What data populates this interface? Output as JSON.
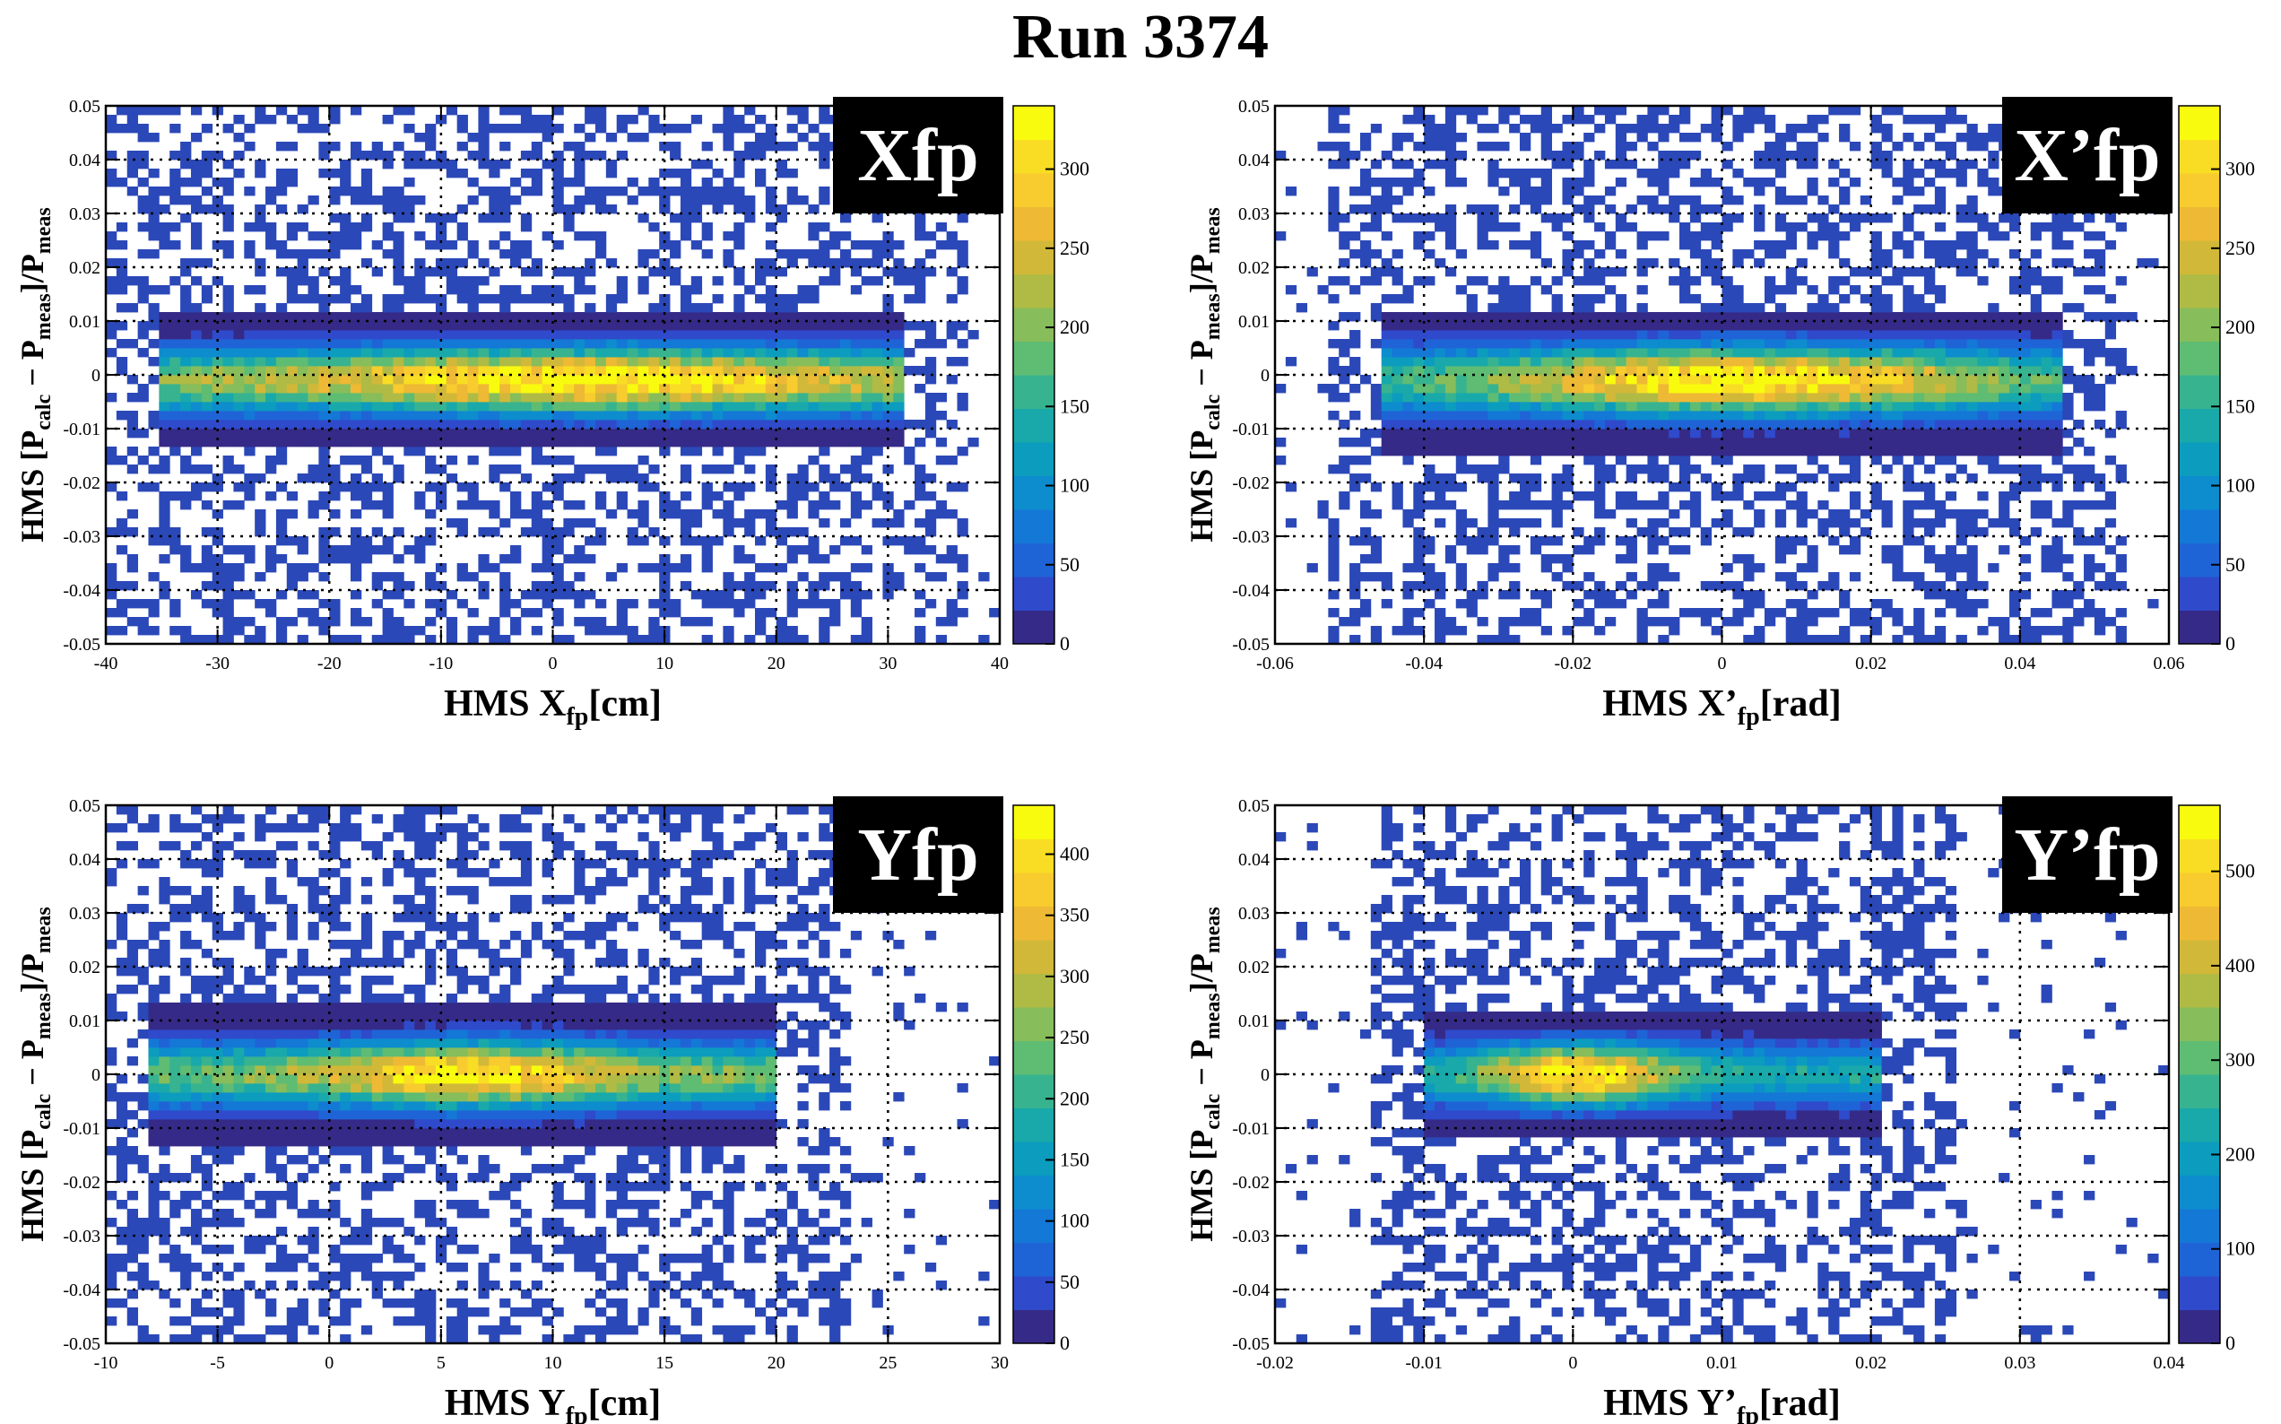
{
  "title": "Run 3374",
  "colormap": [
    "#352a87",
    "#2f4acb",
    "#1f64d6",
    "#1478d6",
    "#0d8cce",
    "#0c9cbe",
    "#19a9aa",
    "#38b38f",
    "#5ebc73",
    "#87bd5a",
    "#b0bb45",
    "#d2b838",
    "#eeb934",
    "#f8cb2e",
    "#f9dd24",
    "#f9fb0e"
  ],
  "scatter_color": "#2b48b8",
  "chart_data": [
    {
      "type": "heatmap",
      "panel_label": "Xfp",
      "xlabel": {
        "base": "HMS X",
        "sub": "fp",
        "unit": "[cm]"
      },
      "ylabel": {
        "p1": "HMS [P",
        "s1": "calc",
        "p2": " − P",
        "s2": "meas",
        "p3": "]/P",
        "s3": "meas"
      },
      "xlim": [
        -40,
        40
      ],
      "ylim": [
        -0.05,
        0.05
      ],
      "xticks": [
        "-40",
        "-30",
        "-20",
        "-10",
        "0",
        "10",
        "20",
        "30",
        "40"
      ],
      "yticks": [
        "-0.05",
        "-0.04",
        "-0.03",
        "-0.02",
        "-0.01",
        "0",
        "0.01",
        "0.02",
        "0.03",
        "0.04",
        "0.05"
      ],
      "zmax": 340,
      "zticks": [
        "0",
        "50",
        "100",
        "150",
        "200",
        "250",
        "300"
      ],
      "band": {
        "x_min": -35,
        "x_max": 31,
        "peak_x": 3,
        "peak_y": -0.001,
        "width_x": 25,
        "sigma_y": 0.004,
        "ridge_frac": 0.55
      }
    },
    {
      "type": "heatmap",
      "panel_label": "X’fp",
      "xlabel": {
        "base": "HMS X’",
        "sub": "fp",
        "unit": "[rad]"
      },
      "ylabel": {
        "p1": "HMS [P",
        "s1": "calc",
        "p2": " − P",
        "s2": "meas",
        "p3": "]/P",
        "s3": "meas"
      },
      "xlim": [
        -0.06,
        0.06
      ],
      "ylim": [
        -0.05,
        0.05
      ],
      "xticks": [
        "-0.06",
        "-0.04",
        "-0.02",
        "0",
        "0.02",
        "0.04",
        "0.06"
      ],
      "yticks": [
        "-0.05",
        "-0.04",
        "-0.03",
        "-0.02",
        "-0.01",
        "0",
        "0.01",
        "0.02",
        "0.03",
        "0.04",
        "0.05"
      ],
      "zmax": 340,
      "zticks": [
        "0",
        "50",
        "100",
        "150",
        "200",
        "250",
        "300"
      ],
      "band": {
        "x_min": -0.045,
        "x_max": 0.045,
        "peak_x": 0.003,
        "peak_y": -0.001,
        "width_x": 0.03,
        "sigma_y": 0.0042,
        "ridge_frac": 0.45
      }
    },
    {
      "type": "heatmap",
      "panel_label": "Yfp",
      "xlabel": {
        "base": "HMS Y",
        "sub": "fp",
        "unit": "[cm]"
      },
      "ylabel": {
        "p1": "HMS [P",
        "s1": "calc",
        "p2": " − P",
        "s2": "meas",
        "p3": "]/P",
        "s3": "meas"
      },
      "xlim": [
        -10,
        30
      ],
      "ylim": [
        -0.05,
        0.05
      ],
      "xticks": [
        "-10",
        "-5",
        "0",
        "5",
        "10",
        "15",
        "20",
        "25",
        "30"
      ],
      "yticks": [
        "-0.05",
        "-0.04",
        "-0.03",
        "-0.02",
        "-0.01",
        "0",
        "0.01",
        "0.02",
        "0.03",
        "0.04",
        "0.05"
      ],
      "zmax": 440,
      "zticks": [
        "0",
        "50",
        "100",
        "150",
        "200",
        "250",
        "300",
        "350",
        "400"
      ],
      "band": {
        "x_min": -8,
        "x_max": 20,
        "peak_x": 6.5,
        "peak_y": 0,
        "width_x": 6,
        "sigma_y": 0.004,
        "ridge_frac": 0.55
      }
    },
    {
      "type": "heatmap",
      "panel_label": "Y’fp",
      "xlabel": {
        "base": "HMS Y’",
        "sub": "fp",
        "unit": "[rad]"
      },
      "ylabel": {
        "p1": "HMS [P",
        "s1": "calc",
        "p2": " − P",
        "s2": "meas",
        "p3": "]/P",
        "s3": "meas"
      },
      "xlim": [
        -0.02,
        0.04
      ],
      "ylim": [
        -0.05,
        0.05
      ],
      "xticks": [
        "-0.02",
        "-0.01",
        "0",
        "0.01",
        "0.02",
        "0.03",
        "0.04"
      ],
      "yticks": [
        "-0.05",
        "-0.04",
        "-0.03",
        "-0.02",
        "-0.01",
        "0",
        "0.01",
        "0.02",
        "0.03",
        "0.04",
        "0.05"
      ],
      "zmax": 570,
      "zticks": [
        "0",
        "100",
        "200",
        "300",
        "400",
        "500"
      ],
      "band": {
        "x_min": -0.01,
        "x_max": 0.021,
        "peak_x": 0.0005,
        "peak_y": 0,
        "width_x": 0.006,
        "sigma_y": 0.0038,
        "ridge_frac": 0.4
      }
    }
  ]
}
